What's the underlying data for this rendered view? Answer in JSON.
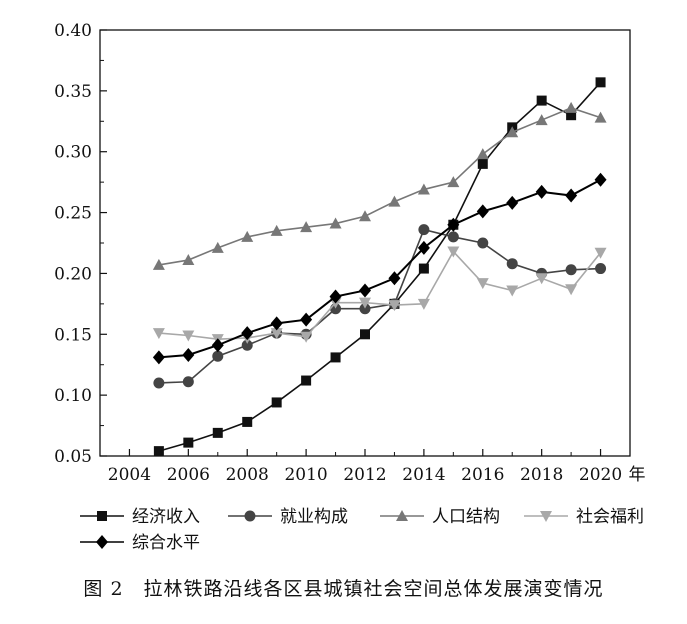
{
  "chart_data": {
    "type": "line",
    "x": [
      2005,
      2006,
      2007,
      2008,
      2009,
      2010,
      2011,
      2012,
      2013,
      2014,
      2015,
      2016,
      2017,
      2018,
      2019,
      2020
    ],
    "xticks": [
      2004,
      2006,
      2008,
      2010,
      2012,
      2014,
      2016,
      2018,
      2020
    ],
    "xtick_labels": [
      "2004",
      "2006",
      "2008",
      "2010",
      "2012",
      "2014",
      "2016",
      "2018",
      "2020"
    ],
    "x_unit": "年",
    "xlim": [
      2003,
      2021
    ],
    "ylim": [
      0.05,
      0.4
    ],
    "yticks": [
      0.05,
      0.1,
      0.15,
      0.2,
      0.25,
      0.3,
      0.35,
      0.4
    ],
    "ytick_labels": [
      "0.05",
      "0.10",
      "0.15",
      "0.20",
      "0.25",
      "0.30",
      "0.35",
      "0.40"
    ],
    "grid": false,
    "legend_position": "bottom",
    "series": [
      {
        "name": "经济收入",
        "marker": "square",
        "color": "#111111",
        "values": [
          0.054,
          0.061,
          0.069,
          0.078,
          0.094,
          0.112,
          0.131,
          0.15,
          0.175,
          0.204,
          0.24,
          0.29,
          0.32,
          0.342,
          0.33,
          0.357
        ]
      },
      {
        "name": "就业构成",
        "marker": "circle",
        "color": "#444444",
        "values": [
          0.11,
          0.111,
          0.132,
          0.141,
          0.151,
          0.15,
          0.171,
          0.171,
          0.175,
          0.236,
          0.23,
          0.225,
          0.208,
          0.2,
          0.203,
          0.204
        ]
      },
      {
        "name": "人口结构",
        "marker": "triangle-up",
        "color": "#777777",
        "values": [
          0.207,
          0.211,
          0.221,
          0.23,
          0.235,
          0.238,
          0.241,
          0.247,
          0.259,
          0.269,
          0.275,
          0.298,
          0.316,
          0.326,
          0.336,
          0.328
        ]
      },
      {
        "name": "社会福利",
        "marker": "triangle-down",
        "color": "#a8a8a8",
        "values": [
          0.151,
          0.149,
          0.146,
          0.147,
          0.151,
          0.148,
          0.176,
          0.176,
          0.174,
          0.175,
          0.218,
          0.192,
          0.186,
          0.196,
          0.187,
          0.217
        ]
      },
      {
        "name": "综合水平",
        "marker": "diamond",
        "color": "#000000",
        "values": [
          0.131,
          0.133,
          0.141,
          0.151,
          0.159,
          0.162,
          0.181,
          0.186,
          0.196,
          0.221,
          0.24,
          0.251,
          0.258,
          0.267,
          0.264,
          0.277
        ]
      }
    ]
  },
  "caption": "图 2　拉林铁路沿线各区县城镇社会空间总体发展演变情况"
}
